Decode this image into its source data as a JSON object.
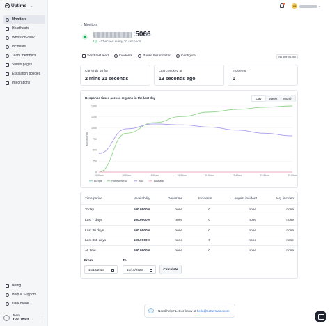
{
  "app": {
    "name": "Uptime"
  },
  "sidebar": {
    "items": [
      {
        "label": "Monitors",
        "active": true,
        "icon": "monitor-icon"
      },
      {
        "label": "Heartbeats",
        "icon": "heartbeat-icon"
      },
      {
        "label": "Who's on-call?",
        "icon": "phone-icon"
      },
      {
        "label": "Incidents",
        "icon": "shield-icon"
      },
      {
        "label": "Team members",
        "icon": "users-icon"
      },
      {
        "label": "Status pages",
        "icon": "status-page-icon"
      },
      {
        "label": "Escalation policies",
        "icon": "escalation-icon"
      },
      {
        "label": "Integrations",
        "icon": "integrations-icon"
      }
    ],
    "bottom": [
      {
        "label": "Billing",
        "icon": "billing-icon"
      },
      {
        "label": "Help & Support",
        "icon": "help-icon"
      },
      {
        "label": "Dark mode",
        "icon": "moon-icon"
      }
    ],
    "team": {
      "label": "Team",
      "name": "Your team"
    }
  },
  "topbar": {
    "avatar_initials": "KS"
  },
  "monitor": {
    "back_label": "Monitors",
    "title_suffix": ":5066",
    "status": "Up",
    "separator": "·",
    "check_frequency": "Checked every 30 seconds"
  },
  "actions": {
    "send_test_alert": "Send test alert",
    "incidents": "Incidents",
    "pause": "Pause this monitor",
    "configure": "Configure",
    "oncall": "No one on-call"
  },
  "stats": {
    "up_label": "Currently up for",
    "up_value": "2 mins 21 seconds",
    "checked_label": "Last checked at",
    "checked_value": "13 seconds ago",
    "incidents_label": "Incidents",
    "incidents_value": "0"
  },
  "chart": {
    "title": "Response times across regions in the last day",
    "periods": [
      "Day",
      "Week",
      "Month"
    ],
    "active_period": "Day"
  },
  "chart_data": {
    "type": "line",
    "title": "Response times across regions in the last day",
    "xlabel": "",
    "ylabel": "Milliseconds",
    "ylim": [
      0,
      1500
    ],
    "y_ticks": [
      "1500",
      "1250",
      "1000",
      "750",
      "500",
      "250",
      "0"
    ],
    "x": [
      "15:59am",
      "15:59am",
      "15:59am",
      "15:59am",
      "15:59am",
      "15:59am",
      "15:59am",
      "15:59am"
    ],
    "series": [
      {
        "name": "Europe",
        "color": "#7bd2c0",
        "values": [
          0,
          0,
          0,
          0,
          0,
          0,
          0,
          0
        ]
      },
      {
        "name": "North America",
        "color": "#8fd48a",
        "values": [
          0,
          880,
          1120,
          1260,
          1360,
          1420,
          1470,
          1500
        ]
      },
      {
        "name": "Asia",
        "color": "#a99bea",
        "values": [
          420,
          980,
          1090,
          1070,
          1020,
          950,
          880,
          820
        ]
      },
      {
        "name": "Australia",
        "color": "#f2a7c0",
        "values": [
          0,
          0,
          0,
          0,
          0,
          0,
          0,
          0
        ]
      }
    ],
    "legend": "bottom-left",
    "grid": true
  },
  "table": {
    "headers": [
      "Time period",
      "Availability",
      "Downtime",
      "Incidents",
      "Longest incident",
      "Avg. incident"
    ],
    "rows": [
      [
        "Today",
        "100.0000%",
        "none",
        "0",
        "none",
        "none"
      ],
      [
        "Last 7 days",
        "100.0000%",
        "none",
        "0",
        "none",
        "none"
      ],
      [
        "Last 30 days",
        "100.0000%",
        "none",
        "0",
        "none",
        "none"
      ],
      [
        "Last 365 days",
        "100.0000%",
        "none",
        "0",
        "none",
        "none"
      ],
      [
        "All time",
        "100.0000%",
        "none",
        "0",
        "none",
        "none"
      ]
    ]
  },
  "range": {
    "from_label": "From",
    "from_value": "15/10/2023",
    "to_label": "To",
    "to_value": "15/10/2023",
    "calculate": "Calculate"
  },
  "footer": {
    "help_text": "Need help? Let us know at",
    "help_email": "hello@betterstack.com"
  },
  "colors": {
    "up": "#22a55b",
    "accent": "#2f6fd6"
  }
}
